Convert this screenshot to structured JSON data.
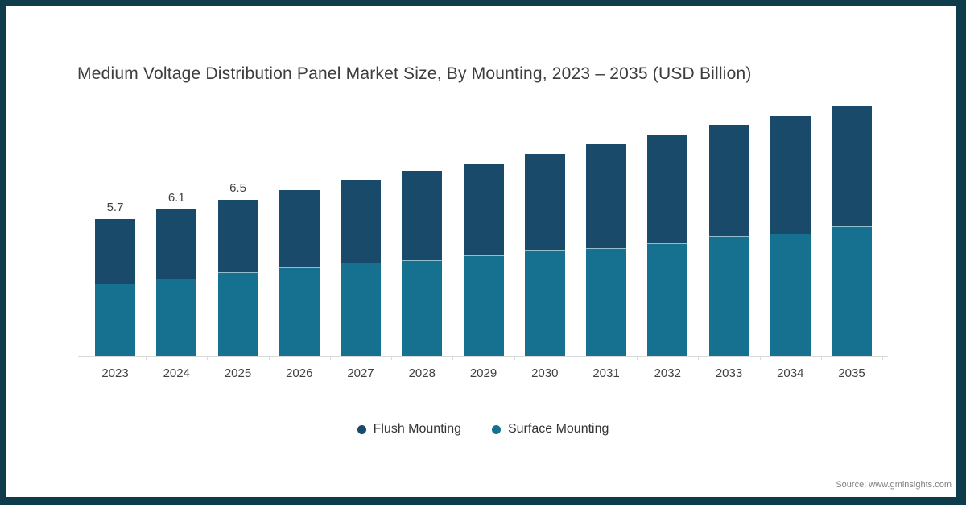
{
  "chart": {
    "title": "Medium Voltage Distribution Panel Market Size, By Mounting, 2023 – 2035 (USD Billion)",
    "source": "Source: www.gminsights.com",
    "colors": {
      "flush_mounting": "#194a6a",
      "surface_mounting": "#16708f",
      "frame_border": "#0e3c4a",
      "axis": "#d9d9d9",
      "title_text": "#3d3d3d",
      "source_text": "#7f7f7f"
    }
  },
  "chart_data": {
    "type": "bar",
    "stacked": true,
    "title": "Medium Voltage Distribution Panel Market Size, By Mounting, 2023 – 2035 (USD Billion)",
    "xlabel": "",
    "ylabel": "USD Billion",
    "categories": [
      "2023",
      "2024",
      "2025",
      "2026",
      "2027",
      "2028",
      "2029",
      "2030",
      "2031",
      "2032",
      "2033",
      "2034",
      "2035"
    ],
    "series": [
      {
        "name": "Flush Mounting",
        "color": "#194a6a",
        "values": [
          2.7,
          2.9,
          3.0,
          3.2,
          3.4,
          3.7,
          3.8,
          4.0,
          4.3,
          4.5,
          4.6,
          4.9,
          5.0
        ]
      },
      {
        "name": "Surface Mounting",
        "color": "#16708f",
        "values": [
          3.0,
          3.2,
          3.5,
          3.7,
          3.9,
          4.0,
          4.2,
          4.4,
          4.5,
          4.7,
          5.0,
          5.1,
          5.4
        ]
      }
    ],
    "stack_bottom_to_top": [
      "Surface Mounting",
      "Flush Mounting"
    ],
    "totals": [
      5.7,
      6.1,
      6.5,
      6.9,
      7.3,
      7.7,
      8.0,
      8.4,
      8.8,
      9.2,
      9.6,
      10.0,
      10.4
    ],
    "data_labels": [
      "5.7",
      "6.1",
      "6.5",
      null,
      null,
      null,
      null,
      null,
      null,
      null,
      null,
      null,
      null
    ],
    "ylim": [
      0,
      11
    ],
    "y_axis_visible": false,
    "grid": false,
    "legend_position": "bottom"
  }
}
